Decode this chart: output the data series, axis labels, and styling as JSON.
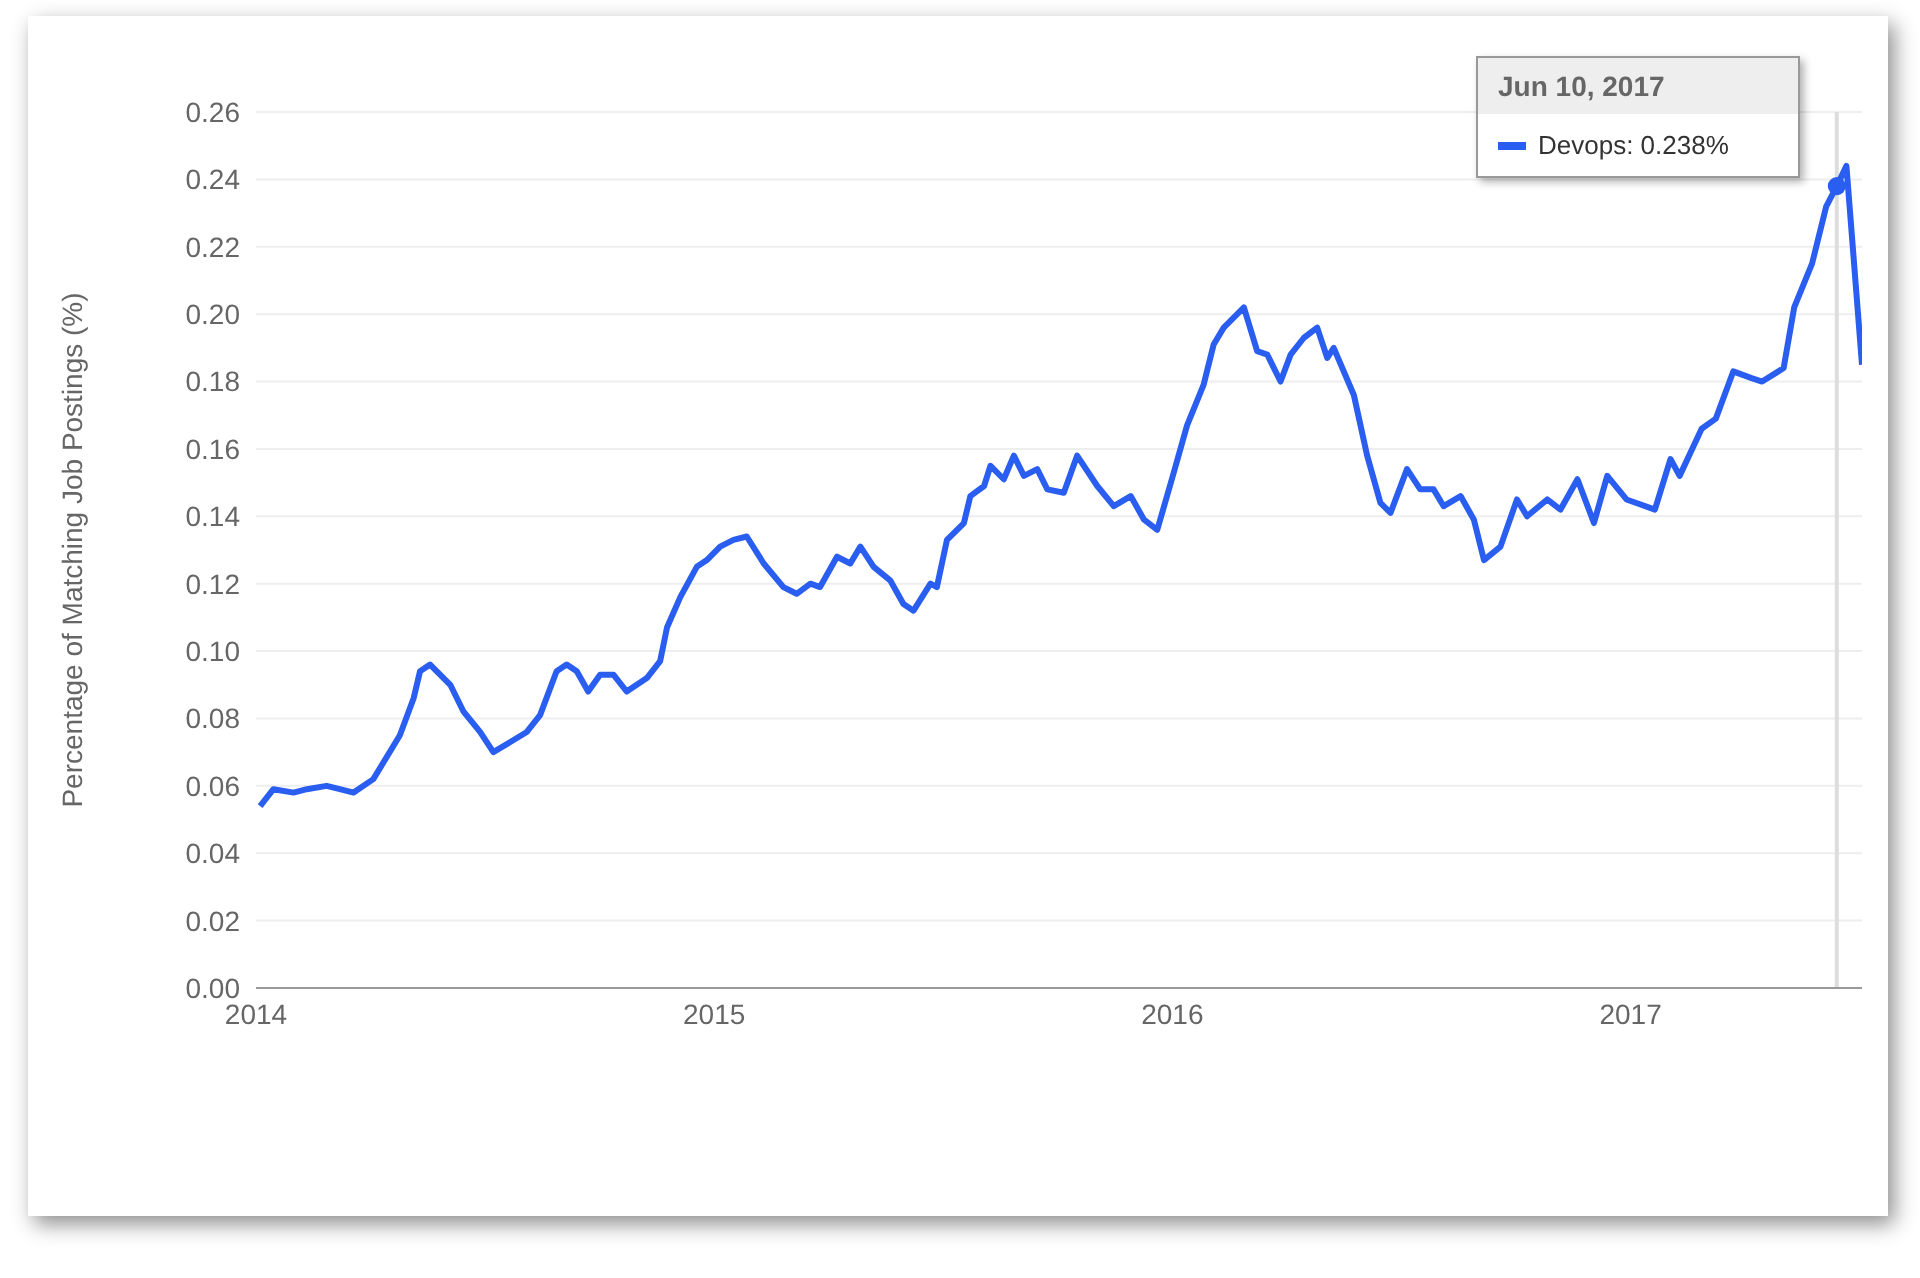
{
  "chart_data": {
    "type": "line",
    "ylabel": "Percentage of Matching Job Postings (%)",
    "x": [
      2014.009,
      2014.038,
      2014.082,
      2014.111,
      2014.154,
      2014.183,
      2014.213,
      2014.256,
      2014.314,
      2014.344,
      2014.358,
      2014.38,
      2014.424,
      2014.453,
      2014.489,
      2014.518,
      2014.555,
      2014.591,
      2014.62,
      2014.656,
      2014.678,
      2014.7,
      2014.725,
      2014.751,
      2014.78,
      2014.809,
      2014.853,
      2014.882,
      2014.897,
      2014.926,
      2014.962,
      2014.984,
      2015.013,
      2015.042,
      2015.071,
      2015.108,
      2015.151,
      2015.18,
      2015.21,
      2015.231,
      2015.268,
      2015.297,
      2015.319,
      2015.348,
      2015.384,
      2015.413,
      2015.435,
      2015.472,
      2015.486,
      2015.508,
      2015.545,
      2015.559,
      2015.589,
      2015.603,
      2015.632,
      2015.654,
      2015.676,
      2015.705,
      2015.727,
      2015.763,
      2015.792,
      2015.836,
      2015.872,
      2015.909,
      2015.938,
      2015.967,
      2016.003,
      2016.032,
      2016.068,
      2016.09,
      2016.112,
      2016.156,
      2016.185,
      2016.207,
      2016.236,
      2016.258,
      2016.287,
      2016.316,
      2016.338,
      2016.352,
      2016.396,
      2016.425,
      2016.454,
      2016.476,
      2016.512,
      2016.541,
      2016.57,
      2016.592,
      2016.629,
      2016.658,
      2016.68,
      2016.716,
      2016.752,
      2016.774,
      2016.818,
      2016.847,
      2016.884,
      2016.92,
      2016.949,
      2016.991,
      2017.053,
      2017.087,
      2017.107,
      2017.155,
      2017.186,
      2017.224,
      2017.264,
      2017.287,
      2017.334,
      2017.357,
      2017.396,
      2017.427,
      2017.45,
      2017.471,
      2017.505
    ],
    "series": [
      {
        "color": "#2a5ef0",
        "values": [
          0.054,
          0.059,
          0.058,
          0.059,
          0.06,
          0.059,
          0.058,
          0.062,
          0.075,
          0.086,
          0.094,
          0.096,
          0.09,
          0.082,
          0.076,
          0.07,
          0.073,
          0.076,
          0.081,
          0.094,
          0.096,
          0.094,
          0.088,
          0.093,
          0.093,
          0.088,
          0.092,
          0.097,
          0.107,
          0.116,
          0.125,
          0.127,
          0.131,
          0.133,
          0.134,
          0.126,
          0.119,
          0.117,
          0.12,
          0.119,
          0.128,
          0.126,
          0.131,
          0.125,
          0.121,
          0.114,
          0.112,
          0.12,
          0.119,
          0.133,
          0.138,
          0.146,
          0.149,
          0.155,
          0.151,
          0.158,
          0.152,
          0.154,
          0.148,
          0.147,
          0.158,
          0.149,
          0.143,
          0.146,
          0.139,
          0.136,
          0.153,
          0.167,
          0.179,
          0.191,
          0.196,
          0.202,
          0.189,
          0.188,
          0.18,
          0.188,
          0.193,
          0.196,
          0.187,
          0.19,
          0.176,
          0.158,
          0.144,
          0.141,
          0.154,
          0.148,
          0.148,
          0.143,
          0.146,
          0.139,
          0.127,
          0.131,
          0.145,
          0.14,
          0.145,
          0.142,
          0.151,
          0.138,
          0.152,
          0.145,
          0.142,
          0.157,
          0.152,
          0.166,
          0.169,
          0.183,
          0.181,
          0.18,
          0.184,
          0.202,
          0.215,
          0.232,
          0.238,
          0.244,
          0.185
        ]
      },
      {
        "type": "scatter",
        "x": [
          2017.45
        ],
        "color": "#2a5ef0",
        "marker": "circle",
        "values": [
          0.238
        ]
      }
    ],
    "xlim": [
      2014,
      2017.505
    ],
    "xticks": [
      2014,
      2015,
      2016,
      2017
    ],
    "ylim": [
      0,
      0.26
    ],
    "yticks": [
      {
        "value": 0,
        "label": "0.00"
      },
      {
        "value": 0.02,
        "label": "0.02"
      },
      {
        "value": 0.04,
        "label": "0.04"
      },
      {
        "value": 0.06,
        "label": "0.06"
      },
      {
        "value": 0.08,
        "label": "0.08"
      },
      {
        "value": 0.1,
        "label": "0.10"
      },
      {
        "value": 0.12,
        "label": "0.12"
      },
      {
        "value": 0.14,
        "label": "0.14"
      },
      {
        "value": 0.16,
        "label": "0.16"
      },
      {
        "value": 0.18,
        "label": "0.18"
      },
      {
        "value": 0.2,
        "label": "0.20"
      },
      {
        "value": 0.22,
        "label": "0.22"
      },
      {
        "value": 0.24,
        "label": "0.24"
      },
      {
        "value": 0.26,
        "label": "0.26"
      }
    ],
    "grid": "y",
    "marker": "none",
    "line_style": "solid",
    "ref_lines": [
      {
        "axis": "x",
        "value": 2017.45,
        "color": "#dddddd"
      }
    ],
    "annotations": [
      "Jun 10, 2017",
      "Devops: 0.238%"
    ]
  }
}
